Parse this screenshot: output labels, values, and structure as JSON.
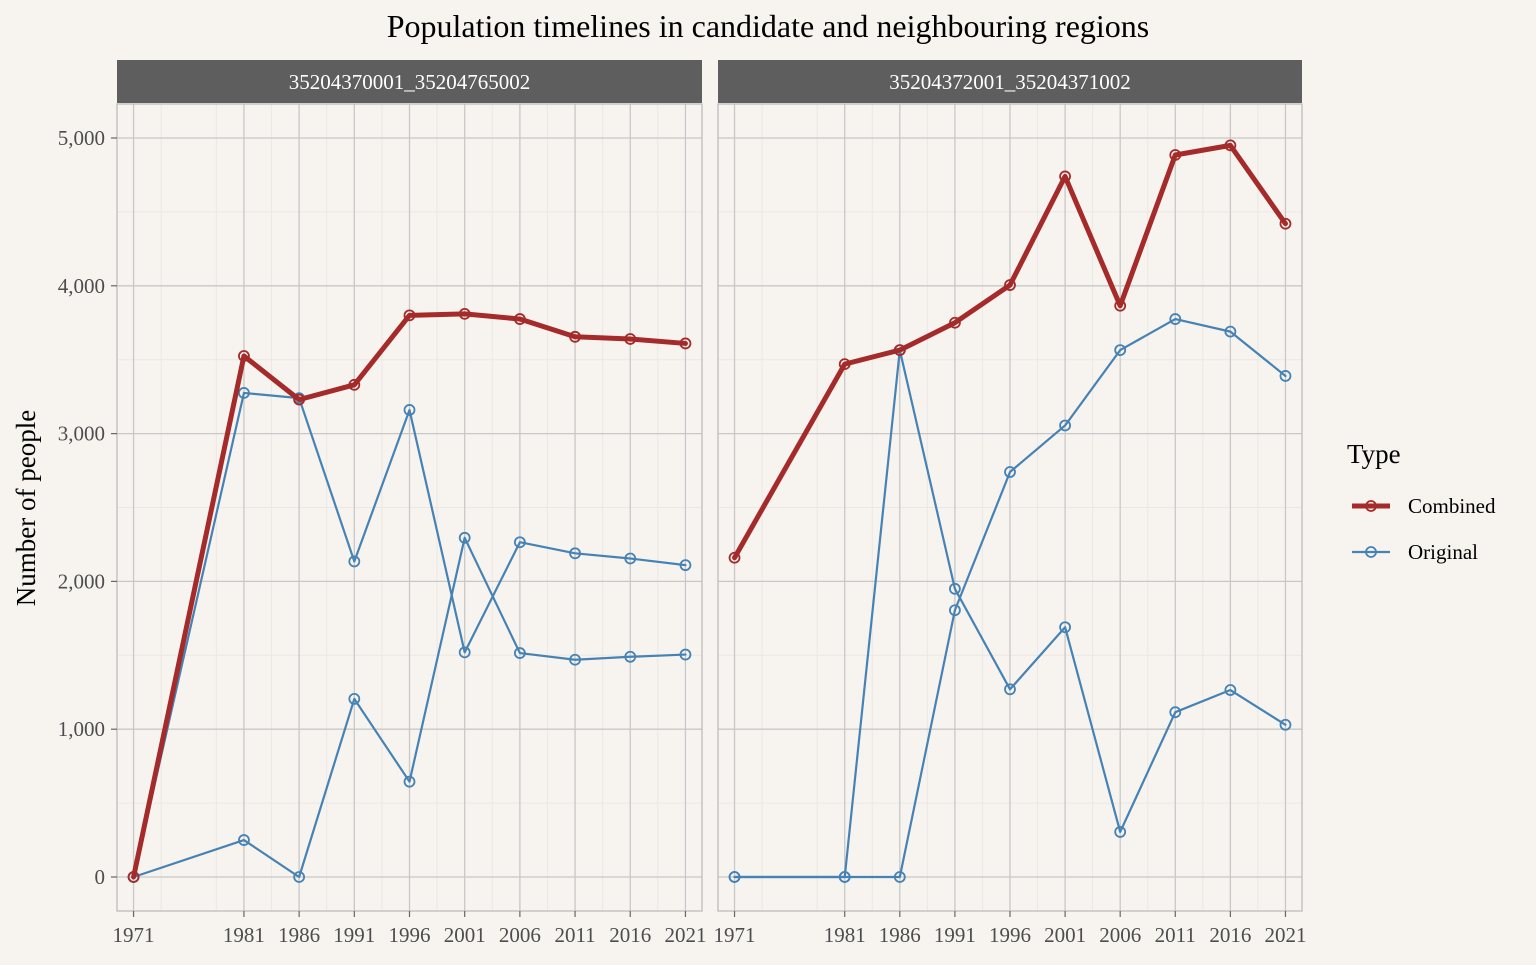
{
  "chart_data": {
    "type": "line",
    "title": "Population timelines in candidate and neighbouring regions",
    "xlabel": "",
    "ylabel": "Number of people",
    "x": [
      1971,
      1981,
      1986,
      1991,
      1996,
      2001,
      2006,
      2011,
      2016,
      2021
    ],
    "ylim": [
      0,
      5000
    ],
    "yticks": [
      0,
      1000,
      2000,
      3000,
      4000,
      5000
    ],
    "ytick_labels": [
      "0",
      "1,000",
      "2,000",
      "3,000",
      "4,000",
      "5,000"
    ],
    "grid": true,
    "legend": {
      "title": "Type",
      "placement": "right",
      "entries": [
        {
          "label": "Combined",
          "color": "#a52a2a"
        },
        {
          "label": "Original",
          "color": "#4682b4"
        }
      ]
    },
    "facets": [
      {
        "label": "35204370001_35204765002",
        "series": [
          {
            "type": "Combined",
            "values": [
              0,
              3525,
              3230,
              3330,
              3800,
              3810,
              3775,
              3655,
              3640,
              3610
            ]
          },
          {
            "type": "Original",
            "values": [
              0,
              250,
              0,
              1205,
              645,
              2295,
              1515,
              1470,
              1490,
              1505
            ]
          },
          {
            "type": "Original",
            "values": [
              0,
              3275,
              3240,
              2135,
              3160,
              1520,
              2265,
              2190,
              2155,
              2110
            ]
          }
        ]
      },
      {
        "label": "35204372001_35204371002",
        "series": [
          {
            "type": "Combined",
            "values": [
              2160,
              3470,
              3565,
              3750,
              4005,
              4740,
              3865,
              4885,
              4950,
              4420
            ]
          },
          {
            "type": "Original",
            "values": [
              0,
              0,
              0,
              1805,
              2740,
              3055,
              3565,
              3775,
              3690,
              3390
            ]
          },
          {
            "type": "Original",
            "values": [
              0,
              0,
              3565,
              1950,
              1270,
              1690,
              305,
              1115,
              1265,
              1030
            ]
          }
        ]
      }
    ]
  }
}
